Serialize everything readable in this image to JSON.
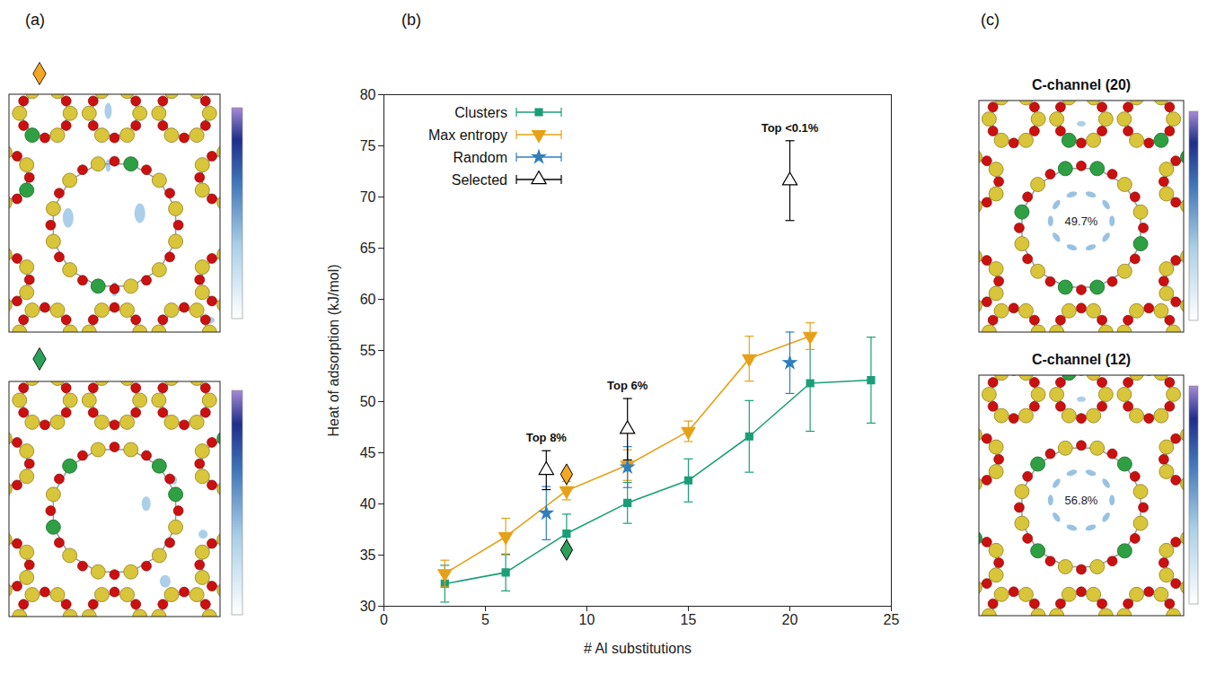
{
  "panel_labels": [
    "(a)",
    "(b)",
    "(c)"
  ],
  "chart_data": {
    "type": "line",
    "x_label": "# Al substitutions",
    "y_label": "Heat of adsorption (kJ/mol)",
    "xlim": [
      0,
      25
    ],
    "xticks": [
      0,
      5,
      10,
      15,
      20,
      25
    ],
    "ylim": [
      30,
      80
    ],
    "yticks": [
      30,
      35,
      40,
      45,
      50,
      55,
      60,
      65,
      70,
      75,
      80
    ],
    "grid": false,
    "legend": "upper left",
    "series": [
      {
        "name": "Clusters",
        "type": "line",
        "color": "#1a9e77",
        "marker": "square",
        "x": [
          3,
          6,
          9,
          12,
          15,
          18,
          21,
          24
        ],
        "values": [
          32.2,
          33.3,
          37.1,
          40.1,
          42.3,
          46.6,
          51.8,
          52.1
        ],
        "errors": [
          1.8,
          1.8,
          1.9,
          2.0,
          2.1,
          3.5,
          4.7,
          4.2
        ]
      },
      {
        "name": "Max entropy",
        "type": "line",
        "color": "#e6a118",
        "marker": "triangle-down",
        "x": [
          3,
          6,
          9,
          12,
          15,
          18,
          21
        ],
        "values": [
          33.2,
          36.8,
          41.3,
          43.8,
          47.1,
          54.2,
          56.4
        ],
        "errors": [
          1.3,
          1.8,
          0.9,
          1.5,
          1.0,
          2.2,
          1.3
        ]
      },
      {
        "name": "Random",
        "type": "scatter",
        "color": "#2f7ebc",
        "marker": "star",
        "x": [
          8,
          12,
          20
        ],
        "values": [
          39.1,
          43.6,
          53.8
        ],
        "errors": [
          2.6,
          2.0,
          3.0
        ]
      },
      {
        "name": "Selected",
        "type": "scatter",
        "color": "#000000",
        "marker": "triangle-open",
        "x": [
          8,
          12,
          20
        ],
        "values": [
          43.3,
          47.3,
          71.6
        ],
        "errors": [
          1.9,
          3.0,
          3.9
        ],
        "annotations": [
          "Top 8%",
          "Top 6%",
          "Top <0.1%"
        ]
      }
    ],
    "highlighted": [
      {
        "x": 9,
        "y": 42.9,
        "color": "#f5a623",
        "marker": "diamond"
      },
      {
        "x": 9,
        "y": 35.5,
        "color": "#2ca05a",
        "marker": "diamond"
      }
    ]
  },
  "panel_c": {
    "images": [
      {
        "title": "C-channel (20)",
        "annotation": "49.7%"
      },
      {
        "title": "C-channel (12)",
        "annotation": "56.8%"
      }
    ]
  }
}
